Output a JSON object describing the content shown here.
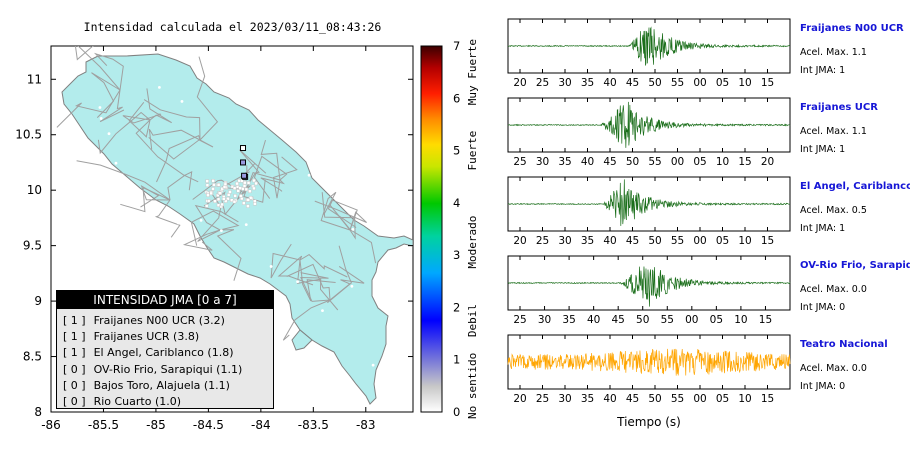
{
  "map": {
    "title": "Intensidad calculada el 2023/03/11_08:43:26",
    "lon_ticks": [
      "-86",
      "-85.5",
      "-85",
      "-84.5",
      "-84",
      "-83.5",
      "-83"
    ],
    "lat_ticks": [
      "8",
      "8.5",
      "9",
      "9.5",
      "10",
      "10.5",
      "11"
    ],
    "lon_range": [
      -86.0,
      -82.55
    ],
    "lat_range": [
      8.0,
      11.3
    ],
    "land_color": "#b3ecec",
    "road_color": "#a0a0a0",
    "stations": [
      {
        "lon": -84.15,
        "lat": 10.12,
        "jma": 1
      },
      {
        "lon": -84.16,
        "lat": 10.13,
        "jma": 1
      },
      {
        "lon": -84.17,
        "lat": 10.25,
        "jma": 1
      },
      {
        "lon": -84.17,
        "lat": 10.38,
        "jma": 0
      }
    ]
  },
  "colorbar": {
    "ticks": [
      "0",
      "1",
      "2",
      "3",
      "4",
      "5",
      "6",
      "7"
    ],
    "labels": [
      "No sentido",
      "Debil",
      "Moderado",
      "Fuerte",
      "Muy Fuerte"
    ]
  },
  "legend": {
    "header": "INTENSIDAD JMA [0 a 7]",
    "items": [
      {
        "level": "[ 1 ]",
        "name": "Fraijanes N00 UCR (3.2)"
      },
      {
        "level": "[ 1 ]",
        "name": "Fraijanes UCR (3.8)"
      },
      {
        "level": "[ 1 ]",
        "name": "El Angel, Cariblanco (1.8)"
      },
      {
        "level": "[ 0 ]",
        "name": "OV-Rio Frio, Sarapiqui (1.1)"
      },
      {
        "level": "[ 0 ]",
        "name": "Bajos Toro, Alajuela (1.1)"
      },
      {
        "level": "[ 0 ]",
        "name": "Rio Cuarto (1.0)"
      }
    ]
  },
  "waveforms": {
    "xlabel": "Tiempo (s)",
    "panels": [
      {
        "name": "Fraijanes N00 UCR",
        "acel": "Acel. Max. 1.1",
        "jma": "Int JMA: 1",
        "color": "#1a6e1a",
        "ticks": [
          "20",
          "25",
          "30",
          "35",
          "40",
          "45",
          "50",
          "55",
          "00",
          "05",
          "10",
          "15"
        ],
        "onset": 0.43,
        "peak": 0.5,
        "amp": 1.0,
        "noise": 0.0
      },
      {
        "name": "Fraijanes UCR",
        "acel": "Acel. Max. 1.1",
        "jma": "Int JMA: 1",
        "color": "#1a6e1a",
        "ticks": [
          "25",
          "30",
          "35",
          "40",
          "45",
          "50",
          "55",
          "00",
          "05",
          "10",
          "15",
          "20"
        ],
        "onset": 0.33,
        "peak": 0.42,
        "amp": 1.0,
        "noise": 0.0
      },
      {
        "name": "El Angel, Cariblanco",
        "acel": "Acel. Max. 0.5",
        "jma": "Int JMA: 1",
        "color": "#1a6e1a",
        "ticks": [
          "20",
          "25",
          "30",
          "35",
          "40",
          "45",
          "50",
          "55",
          "00",
          "05",
          "10",
          "15"
        ],
        "onset": 0.34,
        "peak": 0.41,
        "amp": 1.0,
        "noise": 0.0
      },
      {
        "name": "OV-Rio Frio, Sarapiqui",
        "acel": "Acel. Max. 0.0",
        "jma": "Int JMA: 0",
        "color": "#1a6e1a",
        "ticks": [
          "25",
          "30",
          "35",
          "40",
          "45",
          "50",
          "55",
          "00",
          "05",
          "10",
          "15"
        ],
        "onset": 0.4,
        "peak": 0.5,
        "amp": 1.0,
        "noise": 0.0
      },
      {
        "name": "Teatro Nacional",
        "acel": "Acel. Max. 0.0",
        "jma": "Int JMA: 0",
        "color": "#ffa500",
        "ticks": [
          "20",
          "25",
          "30",
          "35",
          "40",
          "45",
          "50",
          "55",
          "00",
          "05",
          "10",
          "15"
        ],
        "onset": 0.0,
        "peak": 0.6,
        "amp": 0.55,
        "noise": 1.0
      }
    ]
  }
}
